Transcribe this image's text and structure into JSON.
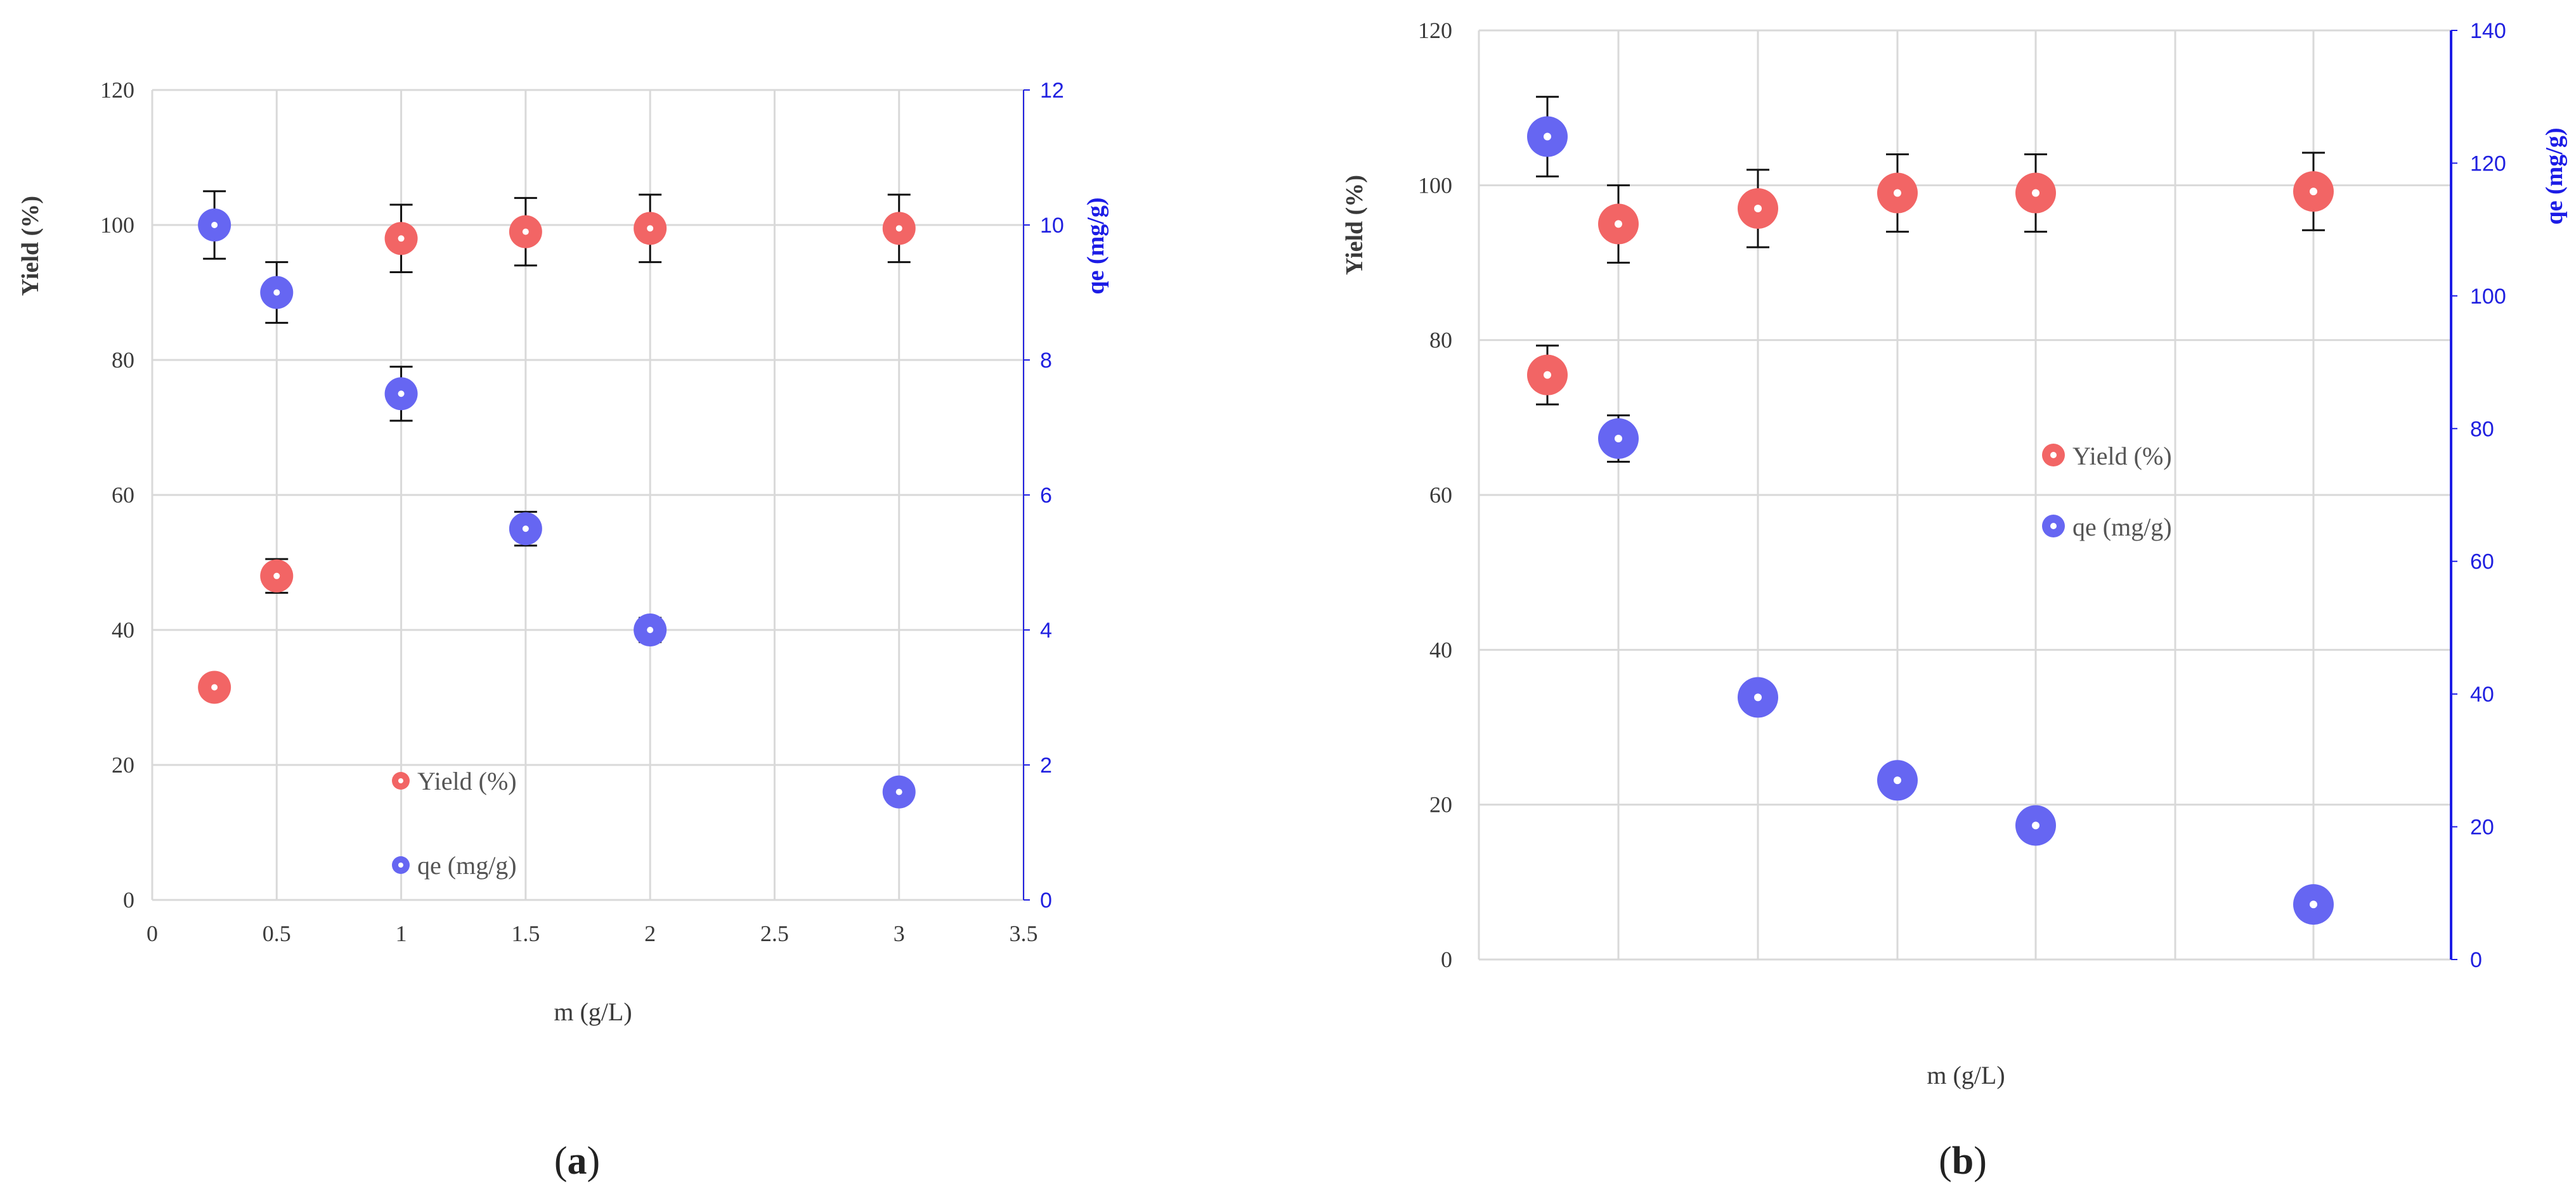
{
  "chart_data": [
    {
      "type": "scatter",
      "panel_label": "a",
      "xlabel": "m (g/L)",
      "ylabel": "Yield (%)",
      "y2label": "qe (mg/g)",
      "xlim": [
        0,
        3.5
      ],
      "ylim": [
        0,
        120
      ],
      "y2lim": [
        0,
        12
      ],
      "x_ticks": [
        "0",
        "0.5",
        "1",
        "1.5",
        "2",
        "2.5",
        "3",
        "3.5"
      ],
      "y_ticks": [
        "0",
        "20",
        "40",
        "60",
        "80",
        "100",
        "120"
      ],
      "y2_ticks": [
        "0",
        "2",
        "4",
        "6",
        "8",
        "10",
        "12"
      ],
      "grid": true,
      "legend_placement": "inside-bottom-center",
      "colors": {
        "yield": "#f26565",
        "qe": "#6666f2",
        "right_axis": "#1c1ce6"
      },
      "series": [
        {
          "name": "Yield (%)",
          "axis": "left",
          "x": [
            0.25,
            0.5,
            1,
            1.5,
            2,
            3
          ],
          "y": [
            31.5,
            48,
            98,
            99,
            99.5,
            99.5
          ],
          "err": [
            1.5,
            2.5,
            5,
            5,
            5,
            5
          ]
        },
        {
          "name": "qe (mg/g)",
          "axis": "right",
          "x": [
            0.25,
            0.5,
            1,
            1.5,
            2,
            3
          ],
          "y": [
            10,
            9,
            7.5,
            5.5,
            4,
            1.6
          ],
          "err": [
            0.5,
            0.45,
            0.4,
            0.25,
            0.18,
            0
          ]
        }
      ]
    },
    {
      "type": "scatter",
      "panel_label": "b",
      "xlabel": "m (g/L)",
      "ylabel": "Yield (%)",
      "y2label": "qe (mg/g)",
      "ylim": [
        0,
        120
      ],
      "y2lim": [
        0,
        140
      ],
      "y_ticks": [
        "0",
        "20",
        "40",
        "60",
        "80",
        "100",
        "120"
      ],
      "y2_ticks": [
        "0",
        "20",
        "40",
        "60",
        "80",
        "100",
        "120",
        "140"
      ],
      "grid": true,
      "legend_placement": "right-middle",
      "colors": {
        "yield": "#f26565",
        "qe": "#6666f2",
        "right_axis": "#1c1ce6"
      },
      "series": [
        {
          "name": "Yield (%)",
          "axis": "left",
          "x": [
            0.25,
            0.5,
            1,
            1.5,
            2,
            3
          ],
          "y": [
            75.5,
            95,
            97,
            99,
            99,
            99.2
          ],
          "err": [
            3.8,
            5,
            5,
            5,
            5,
            5
          ]
        },
        {
          "name": "qe (mg/g)",
          "axis": "right",
          "x": [
            0.25,
            0.5,
            1,
            1.5,
            2,
            3
          ],
          "y": [
            124,
            78.5,
            39.5,
            27,
            20.2,
            8.3
          ],
          "err": [
            6,
            3.5,
            1,
            0,
            0,
            0
          ]
        }
      ]
    }
  ]
}
